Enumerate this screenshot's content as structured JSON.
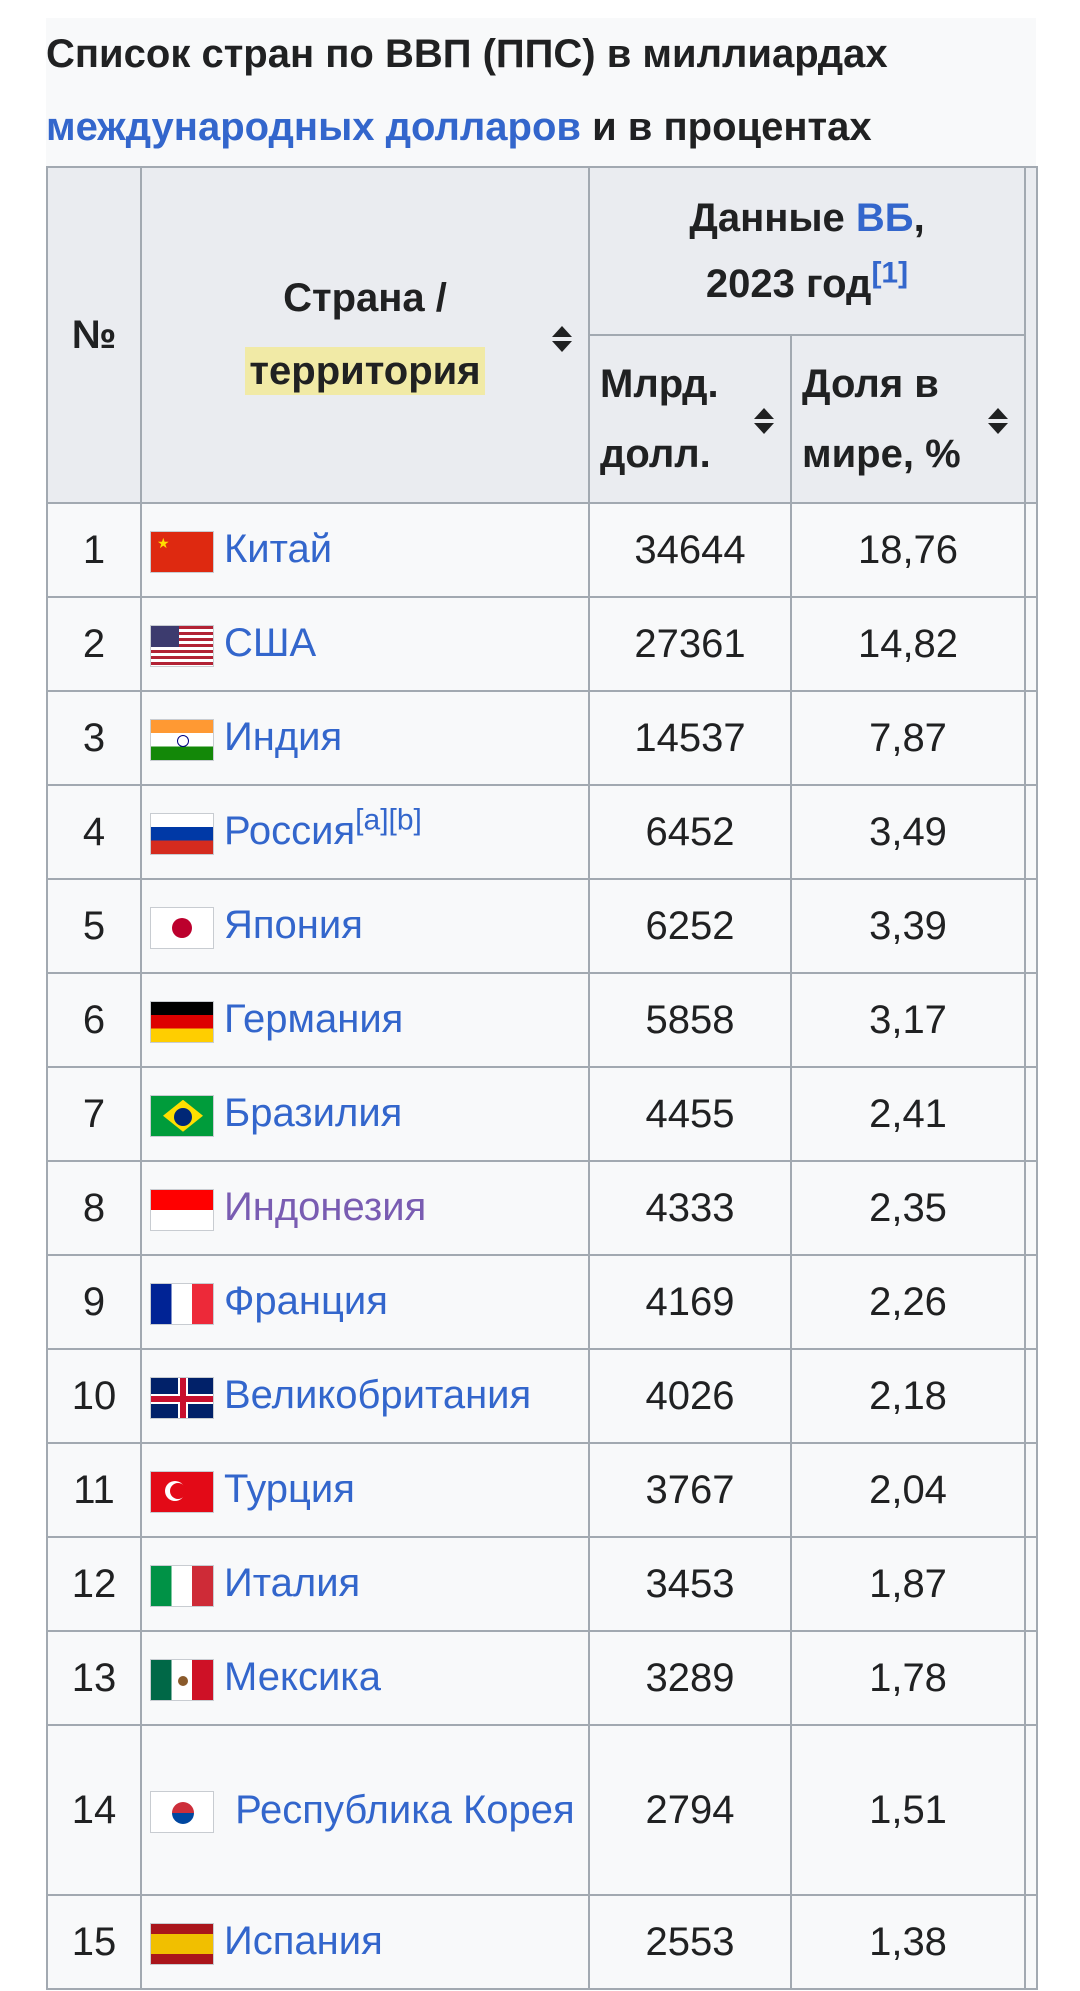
{
  "caption": {
    "line1": "Список стран по ВВП (ППС) в миллиардах",
    "link": "международных долларов",
    "tail": " и в процентах"
  },
  "headers": {
    "no": "№",
    "country_line1": "Страна /",
    "country_line2": "территория",
    "wb_prefix": "Данные ",
    "wb_link": "ВБ",
    "wb_comma": ",",
    "wb_year": "2023 год",
    "wb_ref": "[1]",
    "col_bn_line1": "Млрд.",
    "col_bn_line2": "долл.",
    "col_share_line1": "Доля в",
    "col_share_line2": "мире, %"
  },
  "rows": [
    {
      "rank": "1",
      "country": "Китай",
      "ref": "",
      "gdp": "34644",
      "share": "18,76",
      "flag": "cn-flag-icon"
    },
    {
      "rank": "2",
      "country": "США",
      "ref": "",
      "gdp": "27361",
      "share": "14,82",
      "flag": "us-flag-icon"
    },
    {
      "rank": "3",
      "country": "Индия",
      "ref": "",
      "gdp": "14537",
      "share": "7,87",
      "flag": "in-flag-icon"
    },
    {
      "rank": "4",
      "country": "Россия",
      "ref": "[a][b]",
      "gdp": "6452",
      "share": "3,49",
      "flag": "ru-flag-icon"
    },
    {
      "rank": "5",
      "country": "Япония",
      "ref": "",
      "gdp": "6252",
      "share": "3,39",
      "flag": "jp-flag-icon"
    },
    {
      "rank": "6",
      "country": "Германия",
      "ref": "",
      "gdp": "5858",
      "share": "3,17",
      "flag": "de-flag-icon"
    },
    {
      "rank": "7",
      "country": "Бразилия",
      "ref": "",
      "gdp": "4455",
      "share": "2,41",
      "flag": "br-flag-icon"
    },
    {
      "rank": "8",
      "country": "Индонезия",
      "ref": "",
      "gdp": "4333",
      "share": "2,35",
      "flag": "id-flag-icon",
      "visited": true
    },
    {
      "rank": "9",
      "country": "Франция",
      "ref": "",
      "gdp": "4169",
      "share": "2,26",
      "flag": "fr-flag-icon"
    },
    {
      "rank": "10",
      "country": "Великобритания",
      "ref": "",
      "gdp": "4026",
      "share": "2,18",
      "flag": "gb-flag-icon"
    },
    {
      "rank": "11",
      "country": "Турция",
      "ref": "",
      "gdp": "3767",
      "share": "2,04",
      "flag": "tr-flag-icon"
    },
    {
      "rank": "12",
      "country": "Италия",
      "ref": "",
      "gdp": "3453",
      "share": "1,87",
      "flag": "it-flag-icon"
    },
    {
      "rank": "13",
      "country": "Мексика",
      "ref": "",
      "gdp": "3289",
      "share": "1,78",
      "flag": "mx-flag-icon"
    },
    {
      "rank": "14",
      "country": "Республика Корея",
      "ref": "",
      "gdp": "2794",
      "share": "1,51",
      "flag": "kr-flag-icon"
    },
    {
      "rank": "15",
      "country": "Испания",
      "ref": "",
      "gdp": "2553",
      "share": "1,38",
      "flag": "es-flag-icon"
    }
  ],
  "colors": {
    "link": "#3366cc",
    "visited": "#795cb2",
    "header_bg": "#eaecf0",
    "border": "#a2a9b1",
    "highlight": "#f1eaa6"
  }
}
